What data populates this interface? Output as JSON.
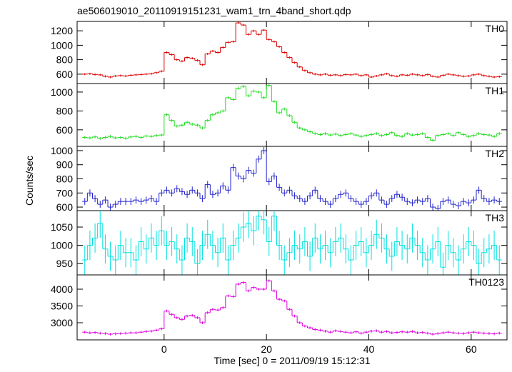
{
  "chart_data": {
    "type": "histogram",
    "title": "ae506019010_20110919151231_wam1_trn_4band_short.qdp",
    "xlabel": "Time [sec] 0 = 2011/09/19 15:12:31",
    "ylabel": "Counts/sec",
    "xlim": [
      -17,
      67
    ],
    "xticks": [
      0,
      20,
      40,
      60
    ],
    "bins": [
      -16,
      -15,
      -14,
      -13,
      -12,
      -11,
      -10,
      -9,
      -8,
      -7,
      -6,
      -5,
      -4,
      -3,
      -2,
      -1,
      0,
      1,
      2,
      3,
      4,
      5,
      6,
      7,
      8,
      9,
      10,
      11,
      12,
      13,
      14,
      15,
      16,
      17,
      18,
      19,
      20,
      21,
      22,
      23,
      24,
      25,
      26,
      27,
      28,
      29,
      30,
      31,
      32,
      33,
      34,
      35,
      36,
      37,
      38,
      39,
      40,
      41,
      42,
      43,
      44,
      45,
      46,
      47,
      48,
      49,
      50,
      51,
      52,
      53,
      54,
      55,
      56,
      57,
      58,
      59,
      60,
      61,
      62,
      63,
      64,
      65,
      66
    ],
    "series": [
      {
        "name": "TH0",
        "color": "#dd0000",
        "error": 15,
        "ylim": [
          470,
          1330
        ],
        "yticks": [
          600,
          800,
          1000,
          1200
        ],
        "values": [
          600,
          605,
          595,
          590,
          570,
          560,
          575,
          580,
          575,
          585,
          590,
          595,
          600,
          605,
          620,
          640,
          900,
          870,
          800,
          780,
          830,
          820,
          790,
          730,
          880,
          920,
          900,
          970,
          1040,
          1050,
          1310,
          1280,
          1150,
          1200,
          1150,
          1210,
          1080,
          1050,
          980,
          900,
          830,
          760,
          700,
          650,
          620,
          600,
          590,
          600,
          585,
          590,
          580,
          595,
          590,
          600,
          580,
          590,
          560,
          575,
          590,
          605,
          580,
          570,
          590,
          585,
          600,
          590,
          580,
          595,
          570,
          560,
          585,
          600,
          590,
          580,
          570,
          575,
          590,
          600,
          580,
          570,
          560,
          565
        ]
      },
      {
        "name": "TH1",
        "color": "#22dd22",
        "error": 15,
        "ylim": [
          425,
          1090
        ],
        "yticks": [
          600,
          800,
          1000
        ],
        "values": [
          520,
          515,
          525,
          510,
          520,
          530,
          515,
          520,
          510,
          525,
          530,
          520,
          535,
          530,
          540,
          545,
          760,
          700,
          640,
          650,
          680,
          660,
          650,
          620,
          700,
          760,
          780,
          800,
          940,
          920,
          1040,
          1060,
          960,
          1010,
          1000,
          940,
          1070,
          900,
          780,
          820,
          750,
          680,
          620,
          600,
          580,
          560,
          550,
          560,
          545,
          555,
          540,
          550,
          560,
          545,
          530,
          540,
          550,
          560,
          540,
          550,
          570,
          540,
          530,
          560,
          545,
          550,
          560,
          520,
          490,
          540,
          550,
          560,
          540,
          570,
          550,
          530,
          540,
          560,
          550,
          545,
          530,
          560
        ]
      },
      {
        "name": "TH2",
        "color": "#2222cc",
        "error": 25,
        "ylim": [
          575,
          1030
        ],
        "yticks": [
          600,
          700,
          800,
          900,
          1000
        ],
        "values": [
          640,
          700,
          660,
          620,
          650,
          600,
          620,
          640,
          640,
          640,
          650,
          640,
          650,
          660,
          640,
          700,
          720,
          700,
          730,
          710,
          690,
          720,
          700,
          660,
          760,
          690,
          700,
          750,
          720,
          880,
          820,
          800,
          860,
          840,
          940,
          1000,
          780,
          820,
          740,
          700,
          720,
          680,
          660,
          640,
          680,
          720,
          660,
          640,
          620,
          660,
          690,
          700,
          660,
          640,
          620,
          640,
          680,
          700,
          650,
          620,
          660,
          690,
          670,
          640,
          630,
          650,
          640,
          660,
          600,
          590,
          640,
          650,
          620,
          610,
          640,
          630,
          650,
          720,
          660,
          640,
          650,
          640
        ]
      },
      {
        "name": "TH3",
        "color": "#00e0e0",
        "error": 40,
        "ylim": [
          919,
          1095
        ],
        "yticks": [
          950,
          1000,
          1050
        ],
        "values": [
          960,
          1000,
          1020,
          1060,
          990,
          970,
          960,
          1000,
          980,
          980,
          960,
          1010,
          990,
          1020,
          1000,
          1040,
          1000,
          1010,
          990,
          960,
          1020,
          1010,
          950,
          1000,
          1030,
          1000,
          980,
          1020,
          960,
          1000,
          1020,
          1050,
          1060,
          1040,
          1080,
          1070,
          1010,
          1080,
          1000,
          960,
          980,
          1000,
          990,
          1010,
          970,
          1020,
          990,
          1000,
          980,
          1010,
          1020,
          990,
          960,
          1000,
          1010,
          980,
          1000,
          1030,
          1020,
          990,
          970,
          1010,
          1000,
          990,
          1020,
          1000,
          980,
          960,
          990,
          1010,
          940,
          1000,
          980,
          960,
          990,
          1010,
          1000,
          950,
          980,
          990,
          1000,
          960
        ]
      },
      {
        "name": "TH0123",
        "color": "#dd00dd",
        "error": 40,
        "ylim": [
          2490,
          4425
        ],
        "yticks": [
          3000,
          3500,
          4000
        ],
        "values": [
          2720,
          2700,
          2710,
          2690,
          2680,
          2660,
          2670,
          2680,
          2690,
          2700,
          2700,
          2720,
          2740,
          2750,
          2780,
          2820,
          3350,
          3250,
          3150,
          3100,
          3200,
          3220,
          3150,
          3000,
          3300,
          3400,
          3380,
          3450,
          3800,
          3780,
          4150,
          4200,
          3950,
          4050,
          4000,
          4000,
          4250,
          3950,
          3700,
          3650,
          3400,
          3200,
          3000,
          2900,
          2850,
          2800,
          2780,
          2750,
          2720,
          2760,
          2740,
          2720,
          2700,
          2730,
          2690,
          2720,
          2750,
          2760,
          2720,
          2740,
          2700,
          2710,
          2730,
          2720,
          2740,
          2700,
          2710,
          2690,
          2660,
          2680,
          2700,
          2720,
          2700,
          2690,
          2680,
          2700,
          2720,
          2700,
          2690,
          2680,
          2670,
          2690
        ]
      }
    ]
  }
}
